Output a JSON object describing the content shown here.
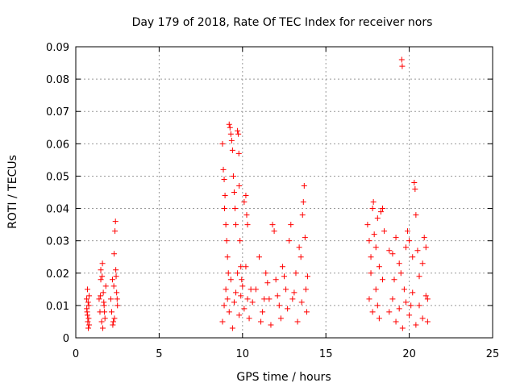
{
  "chart_data": {
    "type": "scatter",
    "title": "Day 179 of 2018, Rate Of TEC Index for receiver nors",
    "xlabel": "GPS time / hours",
    "ylabel": "ROTI / TECUs",
    "xlim": [
      0,
      25
    ],
    "ylim": [
      0,
      0.09
    ],
    "x_ticks": [
      0,
      5,
      10,
      15,
      20,
      25
    ],
    "x_tick_labels": [
      "0",
      "5",
      "10",
      "15",
      "20",
      "25"
    ],
    "y_ticks": [
      0,
      0.01,
      0.02,
      0.03,
      0.04,
      0.05,
      0.06,
      0.07,
      0.08,
      0.09
    ],
    "y_tick_labels": [
      "0",
      "0.01",
      "0.02",
      "0.03",
      "0.04",
      "0.05",
      "0.06",
      "0.07",
      "0.08",
      "0.09"
    ],
    "grid": true,
    "marker": "plus",
    "color": "#ff0000",
    "series": [
      {
        "points": [
          [
            0.65,
            0.012
          ],
          [
            0.68,
            0.008
          ],
          [
            0.7,
            0.015
          ],
          [
            0.72,
            0.005
          ],
          [
            0.75,
            0.003
          ],
          [
            0.78,
            0.01
          ],
          [
            0.8,
            0.013
          ],
          [
            0.7,
            0.007
          ],
          [
            0.74,
            0.011
          ],
          [
            0.66,
            0.009
          ],
          [
            0.77,
            0.006
          ],
          [
            0.8,
            0.004
          ],
          [
            1.4,
            0.012
          ],
          [
            1.45,
            0.008
          ],
          [
            1.5,
            0.018
          ],
          [
            1.55,
            0.005
          ],
          [
            1.6,
            0.023
          ],
          [
            1.65,
            0.014
          ],
          [
            1.7,
            0.01
          ],
          [
            1.75,
            0.006
          ],
          [
            1.8,
            0.016
          ],
          [
            1.5,
            0.021
          ],
          [
            1.58,
            0.019
          ],
          [
            1.62,
            0.003
          ],
          [
            1.68,
            0.011
          ],
          [
            1.72,
            0.008
          ],
          [
            1.48,
            0.013
          ],
          [
            2.1,
            0.012
          ],
          [
            2.15,
            0.008
          ],
          [
            2.2,
            0.018
          ],
          [
            2.25,
            0.005
          ],
          [
            2.3,
            0.026
          ],
          [
            2.35,
            0.033
          ],
          [
            2.38,
            0.036
          ],
          [
            2.4,
            0.021
          ],
          [
            2.45,
            0.014
          ],
          [
            2.5,
            0.01
          ],
          [
            2.32,
            0.006
          ],
          [
            2.28,
            0.016
          ],
          [
            2.42,
            0.019
          ],
          [
            2.22,
            0.004
          ],
          [
            2.48,
            0.012
          ],
          [
            8.8,
            0.06
          ],
          [
            8.85,
            0.052
          ],
          [
            8.9,
            0.049
          ],
          [
            8.92,
            0.04
          ],
          [
            8.95,
            0.044
          ],
          [
            9.0,
            0.035
          ],
          [
            9.05,
            0.03
          ],
          [
            9.1,
            0.025
          ],
          [
            9.15,
            0.02
          ],
          [
            9.2,
            0.066
          ],
          [
            9.25,
            0.065
          ],
          [
            9.3,
            0.063
          ],
          [
            9.35,
            0.061
          ],
          [
            9.4,
            0.058
          ],
          [
            9.45,
            0.05
          ],
          [
            9.5,
            0.045
          ],
          [
            9.55,
            0.04
          ],
          [
            9.6,
            0.035
          ],
          [
            9.7,
            0.064
          ],
          [
            9.75,
            0.063
          ],
          [
            9.78,
            0.057
          ],
          [
            9.8,
            0.047
          ],
          [
            9.85,
            0.03
          ],
          [
            9.9,
            0.022
          ],
          [
            9.95,
            0.018
          ],
          [
            10.1,
            0.042
          ],
          [
            10.2,
            0.044
          ],
          [
            10.25,
            0.038
          ],
          [
            10.3,
            0.035
          ],
          [
            8.8,
            0.005
          ],
          [
            8.9,
            0.01
          ],
          [
            9.0,
            0.015
          ],
          [
            9.1,
            0.012
          ],
          [
            9.2,
            0.008
          ],
          [
            9.3,
            0.018
          ],
          [
            9.4,
            0.003
          ],
          [
            9.5,
            0.011
          ],
          [
            9.6,
            0.014
          ],
          [
            9.7,
            0.02
          ],
          [
            9.8,
            0.007
          ],
          [
            9.9,
            0.013
          ],
          [
            10.0,
            0.016
          ],
          [
            10.1,
            0.009
          ],
          [
            10.2,
            0.022
          ],
          [
            10.3,
            0.012
          ],
          [
            10.4,
            0.006
          ],
          [
            10.5,
            0.015
          ],
          [
            10.6,
            0.011
          ],
          [
            10.8,
            0.015
          ],
          [
            11.0,
            0.025
          ],
          [
            11.2,
            0.008
          ],
          [
            11.4,
            0.02
          ],
          [
            11.6,
            0.012
          ],
          [
            11.8,
            0.035
          ],
          [
            11.9,
            0.033
          ],
          [
            12.0,
            0.018
          ],
          [
            12.2,
            0.01
          ],
          [
            12.4,
            0.022
          ],
          [
            12.6,
            0.015
          ],
          [
            12.8,
            0.03
          ],
          [
            12.9,
            0.035
          ],
          [
            13.0,
            0.012
          ],
          [
            13.2,
            0.02
          ],
          [
            13.4,
            0.028
          ],
          [
            13.5,
            0.025
          ],
          [
            13.6,
            0.038
          ],
          [
            13.65,
            0.042
          ],
          [
            13.7,
            0.047
          ],
          [
            13.75,
            0.031
          ],
          [
            13.8,
            0.015
          ],
          [
            13.85,
            0.008
          ],
          [
            11.1,
            0.005
          ],
          [
            11.3,
            0.012
          ],
          [
            11.5,
            0.017
          ],
          [
            11.7,
            0.004
          ],
          [
            12.1,
            0.013
          ],
          [
            12.3,
            0.006
          ],
          [
            12.5,
            0.019
          ],
          [
            12.7,
            0.009
          ],
          [
            13.1,
            0.014
          ],
          [
            13.3,
            0.005
          ],
          [
            13.55,
            0.011
          ],
          [
            13.9,
            0.019
          ],
          [
            17.5,
            0.035
          ],
          [
            17.6,
            0.03
          ],
          [
            17.7,
            0.025
          ],
          [
            17.8,
            0.04
          ],
          [
            17.85,
            0.042
          ],
          [
            17.9,
            0.032
          ],
          [
            18.0,
            0.028
          ],
          [
            18.1,
            0.037
          ],
          [
            18.2,
            0.022
          ],
          [
            18.3,
            0.039
          ],
          [
            18.4,
            0.04
          ],
          [
            18.5,
            0.033
          ],
          [
            17.6,
            0.012
          ],
          [
            17.8,
            0.008
          ],
          [
            18.0,
            0.015
          ],
          [
            18.2,
            0.006
          ],
          [
            18.4,
            0.018
          ],
          [
            17.7,
            0.02
          ],
          [
            18.1,
            0.01
          ],
          [
            18.8,
            0.027
          ],
          [
            19.0,
            0.026
          ],
          [
            19.1,
            0.018
          ],
          [
            19.2,
            0.031
          ],
          [
            19.4,
            0.023
          ],
          [
            19.5,
            0.02
          ],
          [
            19.55,
            0.086
          ],
          [
            19.58,
            0.084
          ],
          [
            19.7,
            0.015
          ],
          [
            19.8,
            0.028
          ],
          [
            19.9,
            0.033
          ],
          [
            20.0,
            0.03
          ],
          [
            20.1,
            0.01
          ],
          [
            20.2,
            0.025
          ],
          [
            20.3,
            0.048
          ],
          [
            20.35,
            0.046
          ],
          [
            20.4,
            0.038
          ],
          [
            20.5,
            0.027
          ],
          [
            20.6,
            0.019
          ],
          [
            20.8,
            0.023
          ],
          [
            20.9,
            0.031
          ],
          [
            21.0,
            0.028
          ],
          [
            21.1,
            0.012
          ],
          [
            18.8,
            0.008
          ],
          [
            19.0,
            0.012
          ],
          [
            19.2,
            0.005
          ],
          [
            19.4,
            0.009
          ],
          [
            19.6,
            0.003
          ],
          [
            19.8,
            0.011
          ],
          [
            20.0,
            0.007
          ],
          [
            20.2,
            0.014
          ],
          [
            20.4,
            0.004
          ],
          [
            20.6,
            0.01
          ],
          [
            20.8,
            0.006
          ],
          [
            21.0,
            0.013
          ],
          [
            21.1,
            0.005
          ]
        ]
      }
    ]
  }
}
